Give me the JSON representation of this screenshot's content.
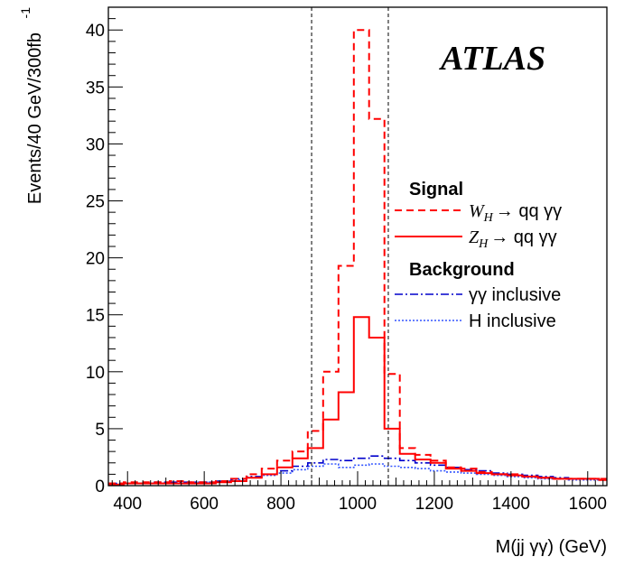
{
  "chart_data": {
    "type": "step-histogram",
    "logo": "ATLAS",
    "xlabel": "M(jj γγ) (GeV)",
    "ylabel": "Events/40 GeV/300fb",
    "ylabel_superscript": "-1",
    "xlim": [
      350,
      1650
    ],
    "ylim": [
      0,
      42
    ],
    "bin_width": 40,
    "x_ticks": [
      400,
      600,
      800,
      1000,
      1200,
      1400,
      1600
    ],
    "y_ticks": [
      0,
      5,
      10,
      15,
      20,
      25,
      30,
      35,
      40
    ],
    "cut_lines": [
      880,
      1080
    ],
    "legend": {
      "signal_header": "Signal",
      "background_header": "Background"
    },
    "bin_edges": [
      350,
      390,
      430,
      470,
      510,
      550,
      590,
      630,
      670,
      710,
      750,
      790,
      830,
      870,
      910,
      950,
      990,
      1030,
      1070,
      1110,
      1150,
      1190,
      1230,
      1270,
      1310,
      1350,
      1390,
      1430,
      1470,
      1510,
      1550,
      1590,
      1630,
      1650
    ],
    "series": [
      {
        "name": "W_H → qq γγ",
        "legend_label": "→ qq γγ",
        "legend_symbol": "W",
        "legend_subscript": "H",
        "color": "#ff0000",
        "style": "dashed",
        "values": [
          0.2,
          0.3,
          0.3,
          0.3,
          0.4,
          0.3,
          0.3,
          0.4,
          0.6,
          1.0,
          1.5,
          2.2,
          3.0,
          4.8,
          10.0,
          19.3,
          40.0,
          32.2,
          9.8,
          3.3,
          2.7,
          2.2,
          1.6,
          1.5,
          1.2,
          1.0,
          1.0,
          0.8,
          0.7,
          0.6,
          0.6,
          0.6,
          0.6
        ]
      },
      {
        "name": "Z_H → qq γγ",
        "legend_label": "→ qq γγ",
        "legend_symbol": "Z",
        "legend_subscript": "H",
        "color": "#ff0000",
        "style": "solid",
        "values": [
          0.1,
          0.2,
          0.2,
          0.2,
          0.2,
          0.2,
          0.2,
          0.3,
          0.4,
          0.7,
          1.0,
          1.6,
          2.4,
          3.3,
          5.8,
          8.2,
          14.8,
          13.0,
          5.0,
          2.8,
          2.3,
          2.0,
          1.5,
          1.3,
          1.1,
          1.0,
          0.9,
          0.8,
          0.7,
          0.6,
          0.6,
          0.6,
          0.5
        ]
      },
      {
        "name": "γγ inclusive",
        "legend_label": "γγ inclusive",
        "color": "#0000cc",
        "style": "dashdot",
        "values": [
          0.2,
          0.2,
          0.2,
          0.3,
          0.3,
          0.3,
          0.3,
          0.4,
          0.6,
          0.8,
          1.0,
          1.3,
          1.7,
          2.0,
          2.3,
          2.2,
          2.4,
          2.6,
          2.4,
          2.2,
          2.0,
          1.8,
          1.6,
          1.4,
          1.3,
          1.1,
          1.0,
          0.9,
          0.8,
          0.7,
          0.6,
          0.6,
          0.5
        ]
      },
      {
        "name": "H inclusive",
        "legend_label": "H inclusive",
        "color": "#3355ff",
        "style": "dotted",
        "values": [
          0.2,
          0.2,
          0.2,
          0.2,
          0.3,
          0.3,
          0.3,
          0.4,
          0.5,
          0.7,
          0.9,
          1.1,
          1.4,
          1.7,
          1.9,
          1.6,
          1.8,
          1.9,
          1.7,
          1.6,
          1.5,
          1.3,
          1.2,
          1.1,
          1.0,
          0.9,
          0.8,
          0.7,
          0.6,
          0.6,
          0.5,
          0.5,
          0.5
        ]
      }
    ]
  }
}
